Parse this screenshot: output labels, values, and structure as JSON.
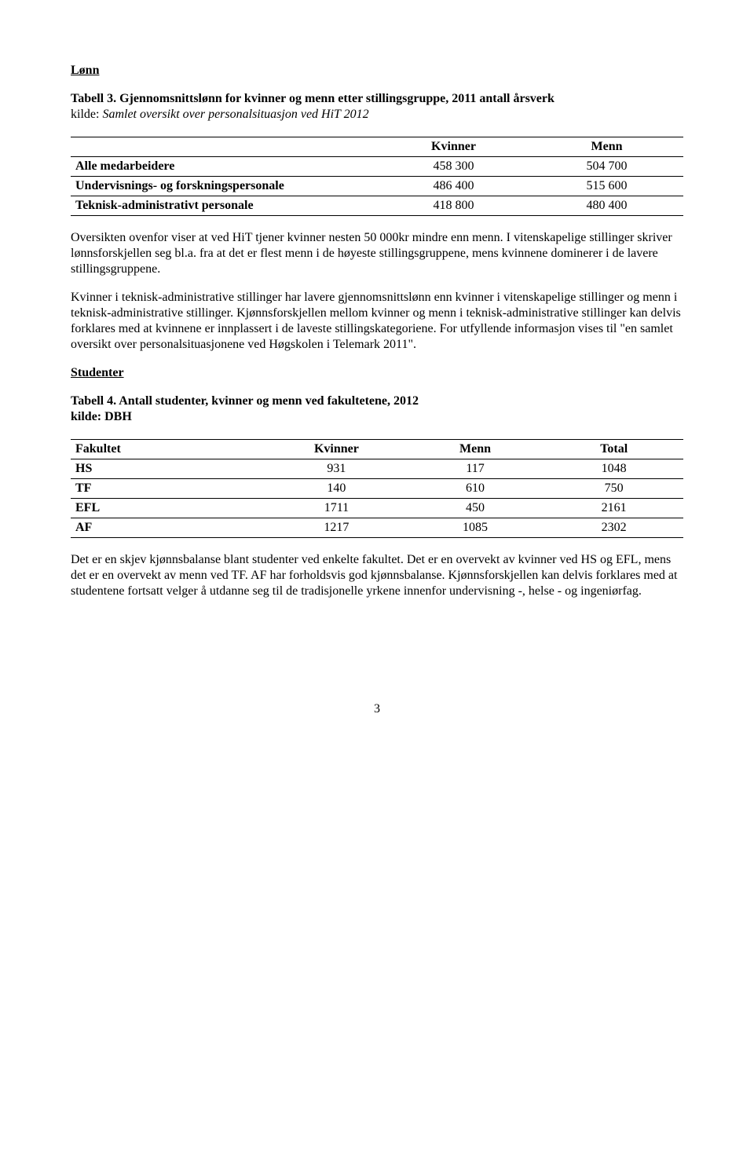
{
  "section1_heading": "Lønn",
  "table3_title": "Tabell 3. Gjennomsnittslønn for kvinner og menn etter stillingsgruppe, 2011 antall årsverk",
  "table3_source_prefix": "kilde: ",
  "table3_source_italic": "Samlet oversikt over personalsituasjon ved HiT 2012",
  "table3": {
    "columns": [
      "",
      "Kvinner",
      "Menn"
    ],
    "rows": [
      [
        "Alle medarbeidere",
        "458 300",
        "504 700"
      ],
      [
        "Undervisnings- og forskningspersonale",
        "486 400",
        "515 600"
      ],
      [
        "Teknisk-administrativt personale",
        "418 800",
        "480 400"
      ]
    ]
  },
  "para1": "Oversikten ovenfor viser at ved HiT tjener kvinner nesten 50 000kr mindre enn menn. I vitenskapelige stillinger skriver lønnsforskjellen seg bl.a. fra at det er flest menn i de høyeste stillingsgruppene, mens kvinnene dominerer i de lavere stillingsgruppene.",
  "para2": "Kvinner i teknisk-administrative stillinger har lavere gjennomsnittslønn enn kvinner i vitenskapelige stillinger og menn i teknisk-administrative stillinger. Kjønnsforskjellen mellom kvinner og menn i teknisk-administrative stillinger kan delvis forklares med at kvinnene er innplassert i de laveste stillingskategoriene.  For utfyllende informasjon vises til \"en samlet oversikt over personalsituasjonene ved Høgskolen i Telemark 2011\".",
  "section2_heading": "Studenter",
  "table4_title": "Tabell 4. Antall studenter, kvinner og menn ved fakultetene, 2012",
  "table4_source": "kilde: DBH",
  "table4": {
    "columns": [
      "Fakultet",
      "Kvinner",
      "Menn",
      "Total"
    ],
    "rows": [
      [
        "HS",
        "931",
        "117",
        "1048"
      ],
      [
        "TF",
        "140",
        "610",
        "750"
      ],
      [
        "EFL",
        "1711",
        "450",
        "2161"
      ],
      [
        "AF",
        "1217",
        "1085",
        "2302"
      ]
    ]
  },
  "para3": "Det er en skjev kjønnsbalanse blant studenter ved enkelte fakultet. Det er en overvekt av kvinner ved HS og EFL, mens det er en overvekt av menn ved TF. AF har forholdsvis god kjønnsbalanse. Kjønnsforskjellen kan delvis forklares med at studentene fortsatt velger å utdanne seg til de tradisjonelle yrkene innenfor undervisning -, helse - og ingeniørfag.",
  "page_number": "3"
}
